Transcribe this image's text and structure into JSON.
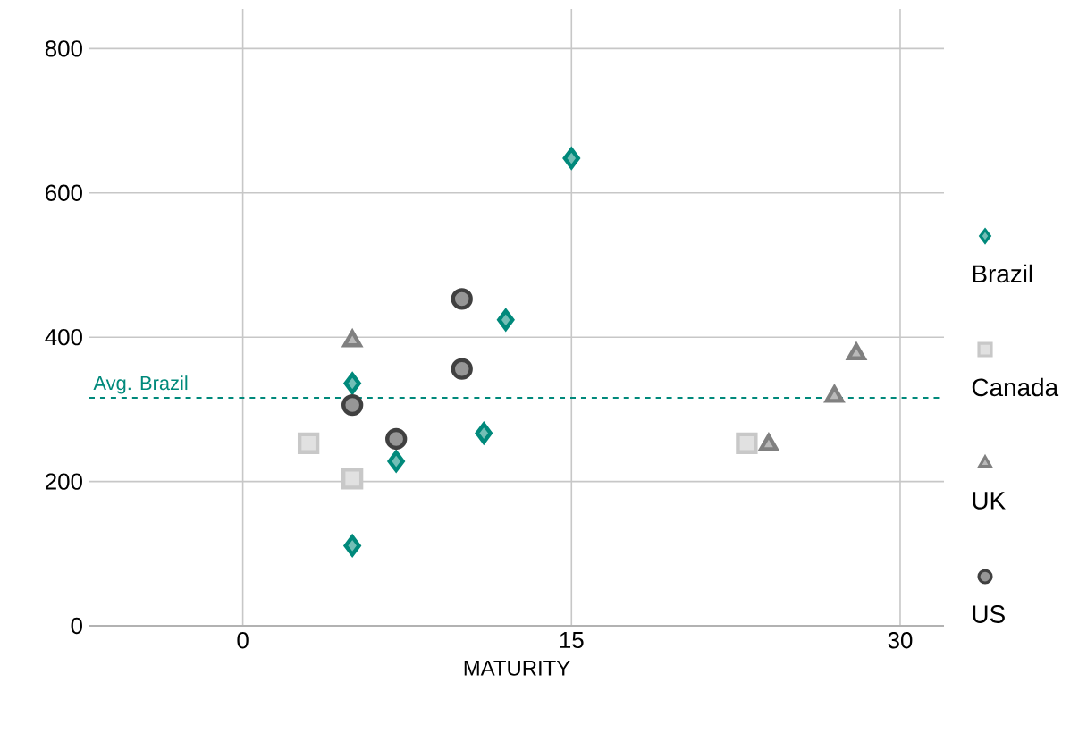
{
  "chart_data": {
    "type": "scatter",
    "xlabel": "MATURITY",
    "xlim": [
      -7,
      32
    ],
    "ylim": [
      0,
      855
    ],
    "xticks": [
      0,
      15,
      30
    ],
    "yticks": [
      0,
      200,
      400,
      600,
      800
    ],
    "grid": true,
    "legend": "right",
    "series": [
      {
        "name": "Brazil",
        "color": "#00897b",
        "marker": "diamond",
        "x": [
          15,
          12,
          5,
          11,
          7,
          5
        ],
        "values": [
          648,
          424,
          336,
          267,
          228,
          111
        ]
      },
      {
        "name": "Canada",
        "color": "#c8c8c8",
        "marker": "square",
        "x": [
          3,
          5,
          23
        ],
        "values": [
          253,
          204,
          253
        ]
      },
      {
        "name": "UK",
        "color": "#808080",
        "marker": "triangle",
        "x": [
          5,
          24,
          27,
          28
        ],
        "values": [
          395,
          251,
          318,
          377
        ]
      },
      {
        "name": "US",
        "color": "#404040",
        "marker": "circle",
        "x": [
          10,
          10,
          5,
          7
        ],
        "values": [
          453,
          356,
          306,
          259
        ]
      }
    ],
    "ref_lines": [
      {
        "axis": "y",
        "value": 316,
        "label": "Avg. Brazil",
        "color": "#00897b",
        "line_style": "dashed"
      }
    ]
  }
}
